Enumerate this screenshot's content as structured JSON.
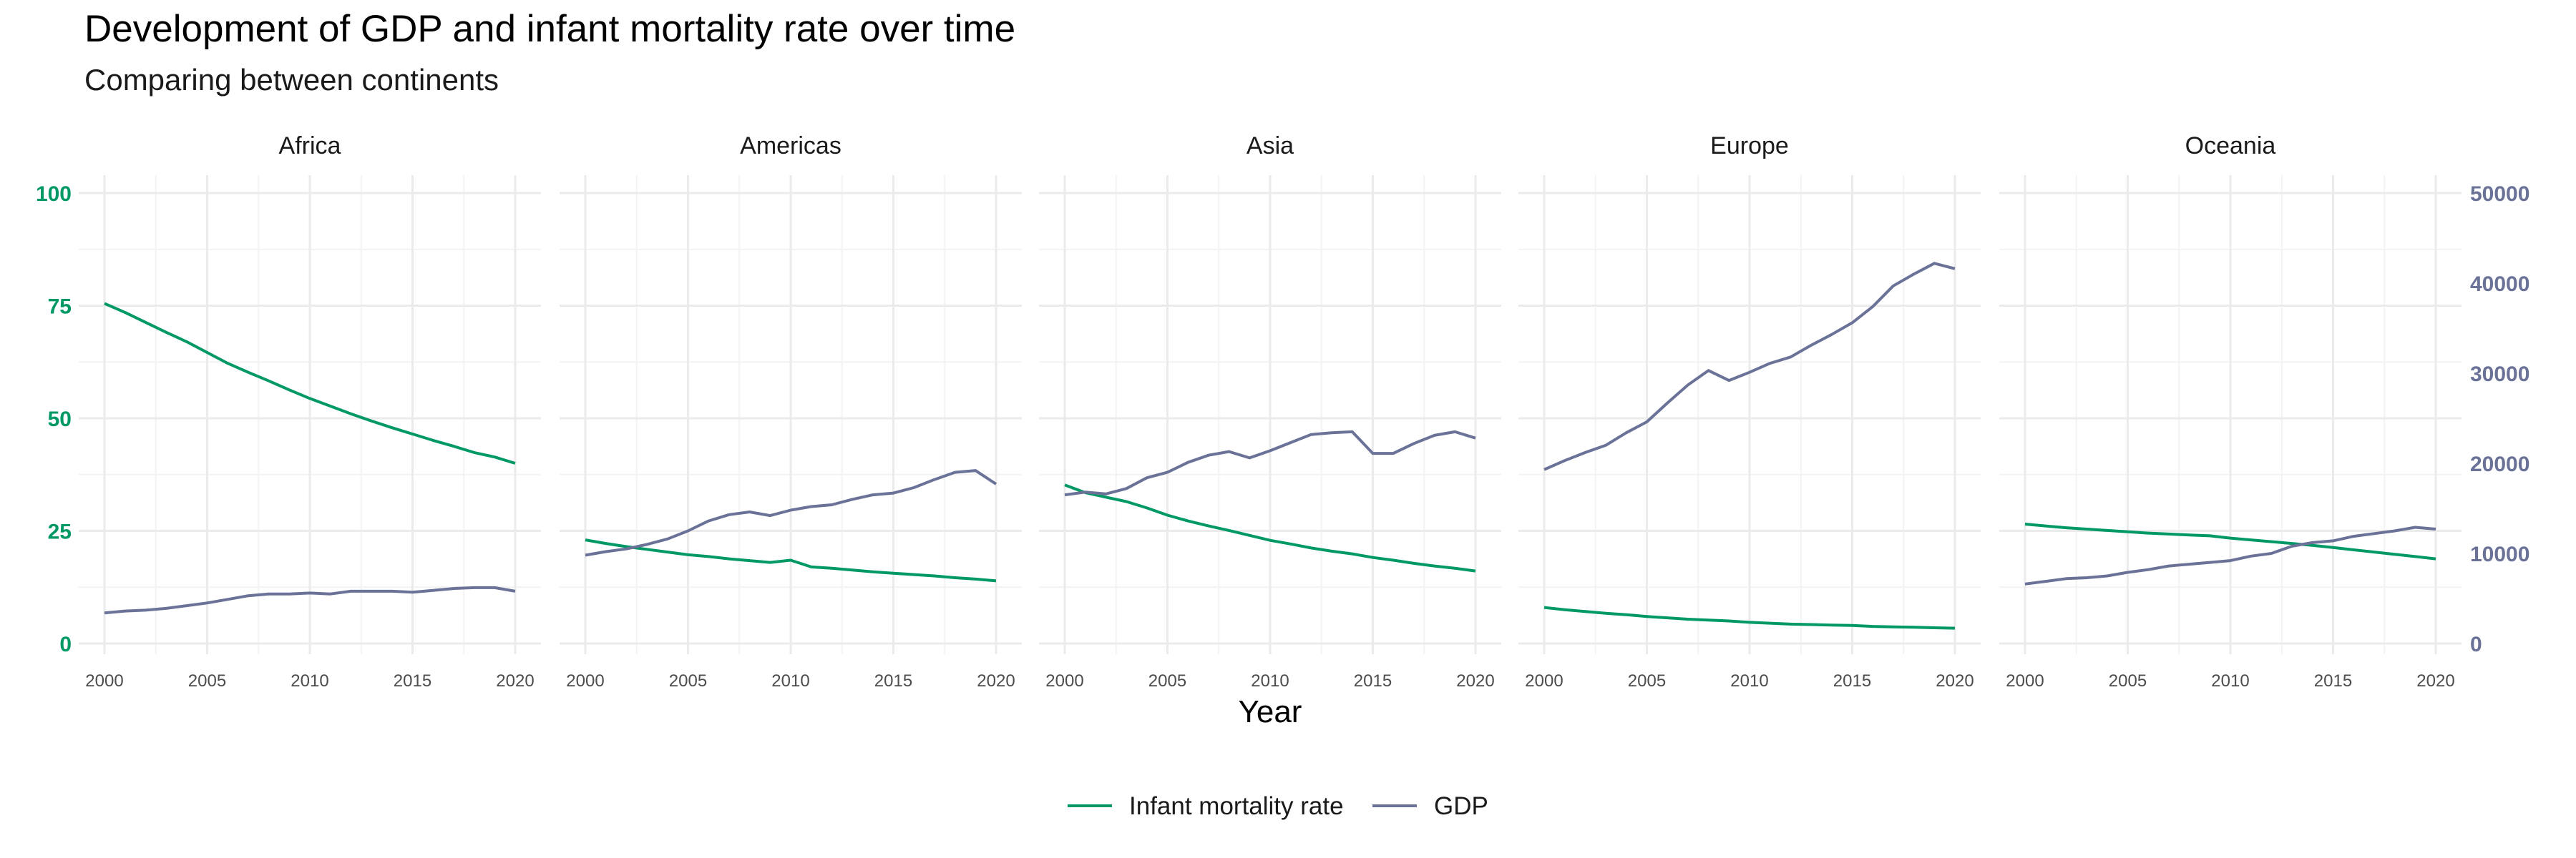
{
  "title": "Development of GDP and infant mortality rate over time",
  "subtitle": "Comparing between continents",
  "xlabel": "Year",
  "colors": {
    "mortality": "#009966",
    "gdp": "#6a7298",
    "grid": "#ebebeb",
    "tick": "#4d4d4d"
  },
  "legend": {
    "position": "bottom",
    "items": [
      "Infant mortality rate",
      "GDP"
    ]
  },
  "chart_data": {
    "type": "line",
    "facets": [
      "Africa",
      "Americas",
      "Asia",
      "Europe",
      "Oceania"
    ],
    "x_ticks": [
      2000,
      2005,
      2010,
      2015,
      2020
    ],
    "xlim": [
      2000,
      2020
    ],
    "y_left": {
      "ticks": [
        0,
        25,
        50,
        75,
        100
      ],
      "ylim": [
        0,
        100
      ]
    },
    "y_right": {
      "ticks": [
        0,
        10000,
        20000,
        30000,
        40000,
        50000
      ],
      "ylim": [
        0,
        50000
      ]
    },
    "grid": true,
    "x": [
      2000,
      2001,
      2002,
      2003,
      2004,
      2005,
      2006,
      2007,
      2008,
      2009,
      2010,
      2011,
      2012,
      2013,
      2014,
      2015,
      2016,
      2017,
      2018,
      2019,
      2020
    ],
    "series": [
      {
        "name": "Infant mortality rate",
        "axis": "left",
        "facet_values": {
          "Africa": [
            75.5,
            73.5,
            71.3,
            69.1,
            67.0,
            64.6,
            62.2,
            60.2,
            58.3,
            56.3,
            54.4,
            52.7,
            51.0,
            49.4,
            47.9,
            46.5,
            45.1,
            43.8,
            42.4,
            41.4,
            40.0
          ],
          "Americas": [
            23.0,
            22.2,
            21.5,
            20.9,
            20.3,
            19.7,
            19.3,
            18.8,
            18.4,
            18.0,
            18.5,
            17.0,
            16.7,
            16.3,
            15.9,
            15.6,
            15.3,
            15.0,
            14.6,
            14.3,
            13.9
          ],
          "Asia": [
            35.2,
            33.5,
            32.5,
            31.5,
            30.1,
            28.5,
            27.2,
            26.1,
            25.1,
            24.0,
            22.9,
            22.1,
            21.2,
            20.5,
            19.9,
            19.1,
            18.5,
            17.8,
            17.2,
            16.7,
            16.1
          ],
          "Europe": [
            8.0,
            7.5,
            7.1,
            6.7,
            6.4,
            6.0,
            5.7,
            5.4,
            5.2,
            5.0,
            4.7,
            4.5,
            4.3,
            4.2,
            4.1,
            4.0,
            3.8,
            3.7,
            3.6,
            3.5,
            3.4
          ],
          "Oceania": [
            26.5,
            26.1,
            25.7,
            25.4,
            25.1,
            24.8,
            24.5,
            24.3,
            24.1,
            23.9,
            23.4,
            23.0,
            22.6,
            22.2,
            21.8,
            21.3,
            20.8,
            20.3,
            19.8,
            19.3,
            18.8
          ]
        }
      },
      {
        "name": "GDP",
        "axis": "right",
        "facet_values": {
          "Africa": [
            3400,
            3600,
            3700,
            3900,
            4200,
            4500,
            4900,
            5300,
            5500,
            5500,
            5600,
            5500,
            5800,
            5800,
            5800,
            5700,
            5900,
            6100,
            6200,
            6200,
            5800
          ],
          "Americas": [
            9800,
            10200,
            10500,
            11000,
            11600,
            12500,
            13600,
            14300,
            14600,
            14200,
            14800,
            15200,
            15400,
            16000,
            16500,
            16700,
            17300,
            18200,
            19000,
            19200,
            17700
          ],
          "Asia": [
            16500,
            16800,
            16600,
            17200,
            18400,
            19000,
            20100,
            20900,
            21300,
            20600,
            21400,
            22300,
            23200,
            23400,
            23500,
            21100,
            21100,
            22200,
            23100,
            23500,
            22800
          ],
          "Europe": [
            19300,
            20300,
            21200,
            22000,
            23400,
            24600,
            26700,
            28700,
            30300,
            29200,
            30100,
            31100,
            31800,
            33100,
            34300,
            35600,
            37400,
            39700,
            41000,
            42200,
            41600
          ],
          "Oceania": [
            6600,
            6900,
            7200,
            7300,
            7500,
            7900,
            8200,
            8600,
            8800,
            9000,
            9200,
            9700,
            10000,
            10800,
            11200,
            11400,
            11900,
            12200,
            12500,
            12900,
            12700
          ]
        }
      }
    ]
  }
}
